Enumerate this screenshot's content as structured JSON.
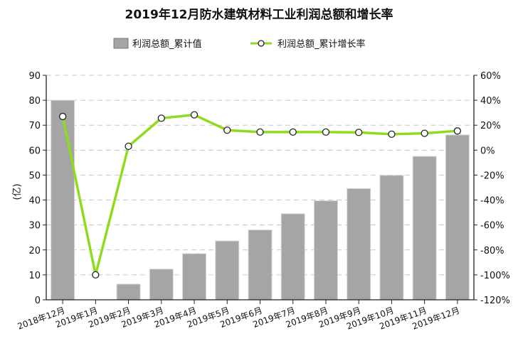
{
  "chart_data": {
    "type": "bar+line",
    "title": "2019年12月防水建筑材料工业利润总额和增长率",
    "ylabel": "(亿)",
    "ylim": [
      0,
      90
    ],
    "y2lim": [
      -120,
      60
    ],
    "yticks": [
      "0",
      "10",
      "20",
      "30",
      "40",
      "50",
      "60",
      "70",
      "80",
      "90"
    ],
    "y2ticks": [
      "-120%",
      "-100%",
      "-80%",
      "-60%",
      "-40%",
      "-20%",
      "0%",
      "20%",
      "40%",
      "60%"
    ],
    "grid": true,
    "legend_position": "top",
    "categories": [
      "2018年12月",
      "2019年1月",
      "2019年2月",
      "2019年3月",
      "2019年4月",
      "2019年5月",
      "2019年6月",
      "2019年7月",
      "2019年8月",
      "2019年9月",
      "2019年10月",
      "2019年11月",
      "2019年12月"
    ],
    "series": [
      {
        "name": "利润总额_累计值",
        "type": "bar",
        "axis": "left",
        "color": "#a5a5a5",
        "values": [
          80,
          null,
          6.3,
          12.3,
          18.5,
          23.6,
          28.0,
          34.5,
          39.7,
          44.6,
          49.9,
          57.5,
          66.1
        ]
      },
      {
        "name": "利润总额_累计增长率",
        "type": "line",
        "axis": "right",
        "color": "#8fdc1e",
        "values": [
          27,
          -100,
          3.1,
          25.6,
          28.3,
          16,
          14.5,
          14.5,
          14.5,
          14.2,
          12.8,
          13.5,
          15.4
        ]
      }
    ]
  }
}
